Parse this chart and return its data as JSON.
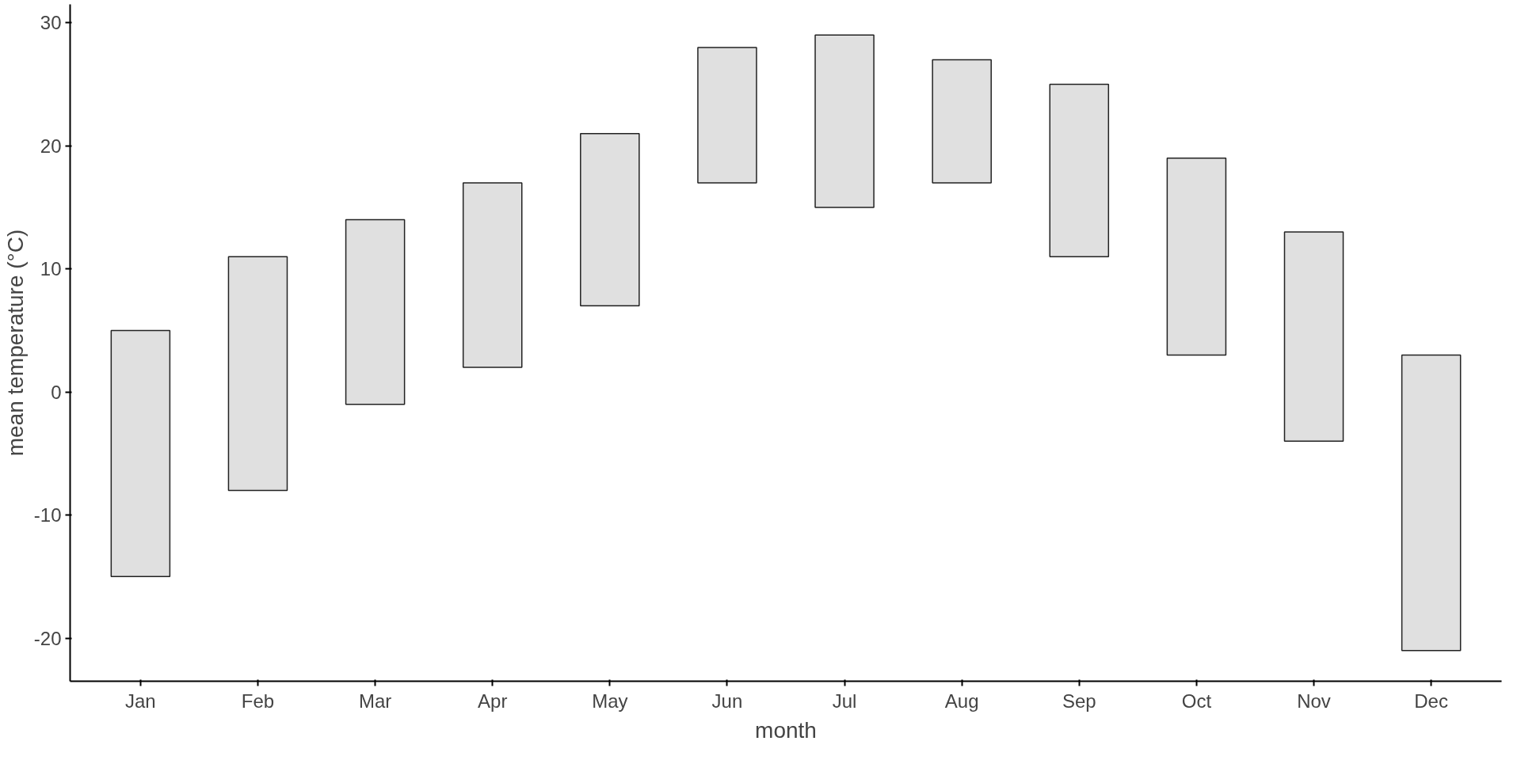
{
  "chart_data": {
    "type": "bar",
    "xlabel": "month",
    "ylabel": "mean temperature (°C)",
    "categories": [
      "Jan",
      "Feb",
      "Mar",
      "Apr",
      "May",
      "Jun",
      "Jul",
      "Aug",
      "Sep",
      "Oct",
      "Nov",
      "Dec"
    ],
    "base": [
      -15,
      -8,
      -1,
      2,
      7,
      17,
      15,
      17,
      11,
      3,
      -4,
      -21
    ],
    "values": [
      20,
      19,
      15,
      15,
      14,
      11,
      14,
      10,
      14,
      16,
      17,
      24
    ],
    "color": "#e0e0e0",
    "ylim": [
      -23.5,
      31.5
    ],
    "yticks": [
      -20,
      -10,
      0,
      10,
      20,
      30
    ],
    "grid": false
  }
}
